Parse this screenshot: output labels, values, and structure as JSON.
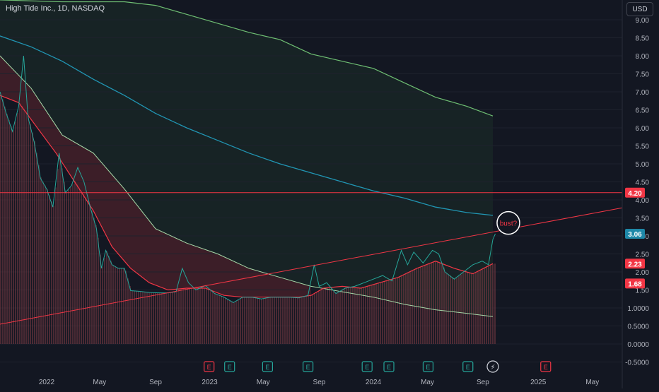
{
  "header": {
    "title": "High Tide Inc., 1D, NASDAQ",
    "currency": "USD"
  },
  "annotation": {
    "label": "bust?"
  },
  "colors": {
    "background": "#131722",
    "price_up": "#26a69a",
    "price_down": "#ef5350",
    "bb_upper": "#6fbf73",
    "ma_blue": "#2196b4",
    "ma_red": "#f23645",
    "trendline": "#f23645",
    "hline": "#f23645",
    "grid": "#1e222d",
    "axis_text": "#b2b5be"
  },
  "chart_data": {
    "type": "line",
    "title": "High Tide Inc., 1D, NASDAQ",
    "y_axis_ticks": [
      "9.00",
      "8.50",
      "8.00",
      "7.50",
      "7.00",
      "6.50",
      "6.00",
      "5.50",
      "5.00",
      "4.50",
      "4.00",
      "3.50",
      "3.00",
      "2.50",
      "2.00",
      "1.50",
      "1.0000",
      "0.5000",
      "0.0000",
      "-0.5000"
    ],
    "x_axis_ticks": [
      "2022",
      "May",
      "Sep",
      "2023",
      "May",
      "Sep",
      "2024",
      "May",
      "Sep",
      "2025",
      "May"
    ],
    "ylim": [
      -0.5,
      9.5
    ],
    "price_labels": [
      {
        "value": 4.2,
        "text": "4.20",
        "color": "#f23645"
      },
      {
        "value": 3.06,
        "text": "3.06",
        "color": "#1e88a8"
      },
      {
        "value": 2.23,
        "text": "2.23",
        "color": "#f23645"
      },
      {
        "value": 1.68,
        "text": "1.68",
        "color": "#f23645"
      }
    ],
    "horizontal_line": 4.2,
    "trendline": {
      "start": {
        "t": 0,
        "y": 0.55
      },
      "end": {
        "t": 1.0,
        "y": 3.78
      }
    },
    "series": [
      {
        "key": "price",
        "values": [
          {
            "t": 0.0,
            "y": 7.0
          },
          {
            "t": 0.01,
            "y": 6.4
          },
          {
            "t": 0.02,
            "y": 5.9
          },
          {
            "t": 0.03,
            "y": 6.6
          },
          {
            "t": 0.038,
            "y": 8.0
          },
          {
            "t": 0.045,
            "y": 6.3
          },
          {
            "t": 0.055,
            "y": 5.6
          },
          {
            "t": 0.065,
            "y": 4.6
          },
          {
            "t": 0.075,
            "y": 4.3
          },
          {
            "t": 0.085,
            "y": 3.8
          },
          {
            "t": 0.095,
            "y": 5.3
          },
          {
            "t": 0.105,
            "y": 4.2
          },
          {
            "t": 0.115,
            "y": 4.4
          },
          {
            "t": 0.125,
            "y": 4.9
          },
          {
            "t": 0.135,
            "y": 4.5
          },
          {
            "t": 0.145,
            "y": 3.8
          },
          {
            "t": 0.155,
            "y": 3.2
          },
          {
            "t": 0.163,
            "y": 2.1
          },
          {
            "t": 0.17,
            "y": 2.6
          },
          {
            "t": 0.18,
            "y": 2.2
          },
          {
            "t": 0.19,
            "y": 2.1
          },
          {
            "t": 0.2,
            "y": 2.1
          },
          {
            "t": 0.21,
            "y": 1.48
          },
          {
            "t": 0.225,
            "y": 1.46
          },
          {
            "t": 0.24,
            "y": 1.43
          },
          {
            "t": 0.255,
            "y": 1.42
          },
          {
            "t": 0.27,
            "y": 1.42
          },
          {
            "t": 0.283,
            "y": 1.45
          },
          {
            "t": 0.293,
            "y": 2.1
          },
          {
            "t": 0.303,
            "y": 1.7
          },
          {
            "t": 0.315,
            "y": 1.5
          },
          {
            "t": 0.33,
            "y": 1.62
          },
          {
            "t": 0.345,
            "y": 1.4
          },
          {
            "t": 0.36,
            "y": 1.3
          },
          {
            "t": 0.375,
            "y": 1.15
          },
          {
            "t": 0.39,
            "y": 1.3
          },
          {
            "t": 0.405,
            "y": 1.3
          },
          {
            "t": 0.42,
            "y": 1.25
          },
          {
            "t": 0.435,
            "y": 1.3
          },
          {
            "t": 0.45,
            "y": 1.3
          },
          {
            "t": 0.465,
            "y": 1.3
          },
          {
            "t": 0.48,
            "y": 1.28
          },
          {
            "t": 0.495,
            "y": 1.35
          },
          {
            "t": 0.505,
            "y": 2.2
          },
          {
            "t": 0.513,
            "y": 1.6
          },
          {
            "t": 0.525,
            "y": 1.7
          },
          {
            "t": 0.54,
            "y": 1.4
          },
          {
            "t": 0.555,
            "y": 1.55
          },
          {
            "t": 0.57,
            "y": 1.6
          },
          {
            "t": 0.585,
            "y": 1.7
          },
          {
            "t": 0.6,
            "y": 1.8
          },
          {
            "t": 0.615,
            "y": 1.9
          },
          {
            "t": 0.63,
            "y": 1.75
          },
          {
            "t": 0.645,
            "y": 2.6
          },
          {
            "t": 0.655,
            "y": 2.2
          },
          {
            "t": 0.665,
            "y": 2.55
          },
          {
            "t": 0.68,
            "y": 2.25
          },
          {
            "t": 0.695,
            "y": 2.6
          },
          {
            "t": 0.705,
            "y": 2.5
          },
          {
            "t": 0.715,
            "y": 2.0
          },
          {
            "t": 0.73,
            "y": 1.8
          },
          {
            "t": 0.745,
            "y": 2.0
          },
          {
            "t": 0.76,
            "y": 2.2
          },
          {
            "t": 0.775,
            "y": 2.3
          },
          {
            "t": 0.785,
            "y": 2.2
          },
          {
            "t": 0.792,
            "y": 2.9
          },
          {
            "t": 0.796,
            "y": 3.06
          }
        ]
      },
      {
        "key": "bb_upper",
        "values": [
          {
            "t": 0.0,
            "y": 9.55
          },
          {
            "t": 0.1,
            "y": 9.5
          },
          {
            "t": 0.2,
            "y": 9.5
          },
          {
            "t": 0.25,
            "y": 9.4
          },
          {
            "t": 0.3,
            "y": 9.15
          },
          {
            "t": 0.35,
            "y": 8.9
          },
          {
            "t": 0.4,
            "y": 8.65
          },
          {
            "t": 0.45,
            "y": 8.45
          },
          {
            "t": 0.5,
            "y": 8.05
          },
          {
            "t": 0.55,
            "y": 7.85
          },
          {
            "t": 0.6,
            "y": 7.65
          },
          {
            "t": 0.65,
            "y": 7.25
          },
          {
            "t": 0.7,
            "y": 6.85
          },
          {
            "t": 0.75,
            "y": 6.6
          },
          {
            "t": 0.792,
            "y": 6.33
          }
        ]
      },
      {
        "key": "ma_blue",
        "values": [
          {
            "t": 0.0,
            "y": 8.55
          },
          {
            "t": 0.05,
            "y": 8.25
          },
          {
            "t": 0.1,
            "y": 7.85
          },
          {
            "t": 0.15,
            "y": 7.35
          },
          {
            "t": 0.2,
            "y": 6.9
          },
          {
            "t": 0.25,
            "y": 6.4
          },
          {
            "t": 0.3,
            "y": 6.0
          },
          {
            "t": 0.35,
            "y": 5.65
          },
          {
            "t": 0.4,
            "y": 5.3
          },
          {
            "t": 0.45,
            "y": 5.0
          },
          {
            "t": 0.5,
            "y": 4.75
          },
          {
            "t": 0.55,
            "y": 4.5
          },
          {
            "t": 0.6,
            "y": 4.25
          },
          {
            "t": 0.65,
            "y": 4.05
          },
          {
            "t": 0.7,
            "y": 3.8
          },
          {
            "t": 0.75,
            "y": 3.65
          },
          {
            "t": 0.792,
            "y": 3.57
          }
        ]
      },
      {
        "key": "bb_lower",
        "values": [
          {
            "t": 0.0,
            "y": 8.0
          },
          {
            "t": 0.05,
            "y": 7.1
          },
          {
            "t": 0.1,
            "y": 5.8
          },
          {
            "t": 0.15,
            "y": 5.3
          },
          {
            "t": 0.2,
            "y": 4.3
          },
          {
            "t": 0.25,
            "y": 3.2
          },
          {
            "t": 0.3,
            "y": 2.8
          },
          {
            "t": 0.35,
            "y": 2.5
          },
          {
            "t": 0.4,
            "y": 2.1
          },
          {
            "t": 0.45,
            "y": 1.85
          },
          {
            "t": 0.5,
            "y": 1.6
          },
          {
            "t": 0.55,
            "y": 1.45
          },
          {
            "t": 0.6,
            "y": 1.3
          },
          {
            "t": 0.65,
            "y": 1.1
          },
          {
            "t": 0.7,
            "y": 0.95
          },
          {
            "t": 0.75,
            "y": 0.85
          },
          {
            "t": 0.792,
            "y": 0.76
          }
        ]
      },
      {
        "key": "ma_red",
        "values": [
          {
            "t": 0.0,
            "y": 6.9
          },
          {
            "t": 0.03,
            "y": 6.7
          },
          {
            "t": 0.06,
            "y": 6.0
          },
          {
            "t": 0.09,
            "y": 5.3
          },
          {
            "t": 0.12,
            "y": 4.5
          },
          {
            "t": 0.15,
            "y": 3.7
          },
          {
            "t": 0.18,
            "y": 2.7
          },
          {
            "t": 0.21,
            "y": 2.1
          },
          {
            "t": 0.24,
            "y": 1.7
          },
          {
            "t": 0.27,
            "y": 1.5
          },
          {
            "t": 0.3,
            "y": 1.55
          },
          {
            "t": 0.33,
            "y": 1.55
          },
          {
            "t": 0.36,
            "y": 1.35
          },
          {
            "t": 0.39,
            "y": 1.3
          },
          {
            "t": 0.42,
            "y": 1.3
          },
          {
            "t": 0.45,
            "y": 1.3
          },
          {
            "t": 0.48,
            "y": 1.3
          },
          {
            "t": 0.5,
            "y": 1.35
          },
          {
            "t": 0.52,
            "y": 1.55
          },
          {
            "t": 0.55,
            "y": 1.6
          },
          {
            "t": 0.58,
            "y": 1.55
          },
          {
            "t": 0.61,
            "y": 1.7
          },
          {
            "t": 0.64,
            "y": 1.85
          },
          {
            "t": 0.67,
            "y": 2.1
          },
          {
            "t": 0.7,
            "y": 2.3
          },
          {
            "t": 0.73,
            "y": 2.1
          },
          {
            "t": 0.76,
            "y": 1.95
          },
          {
            "t": 0.792,
            "y": 2.23
          }
        ]
      }
    ],
    "events": [
      {
        "t": 0.336,
        "label": "E",
        "color": "#f23645"
      },
      {
        "t": 0.369,
        "label": "E",
        "color": "#26a69a"
      },
      {
        "t": 0.43,
        "label": "E",
        "color": "#26a69a"
      },
      {
        "t": 0.495,
        "label": "E",
        "color": "#26a69a"
      },
      {
        "t": 0.59,
        "label": "E",
        "color": "#26a69a"
      },
      {
        "t": 0.625,
        "label": "E",
        "color": "#26a69a"
      },
      {
        "t": 0.688,
        "label": "E",
        "color": "#26a69a"
      },
      {
        "t": 0.752,
        "label": "E",
        "color": "#26a69a"
      },
      {
        "t": 0.792,
        "label": "⚡",
        "color": "#ffffff"
      },
      {
        "t": 0.877,
        "label": "E",
        "color": "#f23645"
      }
    ],
    "grid": true
  }
}
